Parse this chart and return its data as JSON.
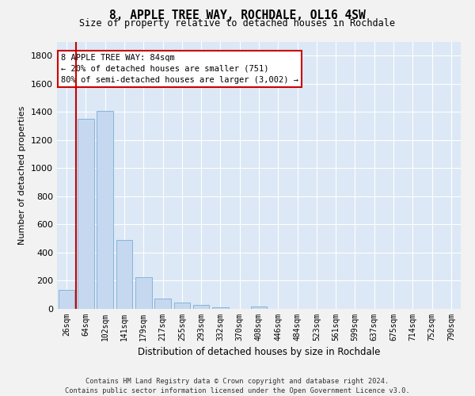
{
  "title": "8, APPLE TREE WAY, ROCHDALE, OL16 4SW",
  "subtitle": "Size of property relative to detached houses in Rochdale",
  "xlabel": "Distribution of detached houses by size in Rochdale",
  "ylabel": "Number of detached properties",
  "bar_color": "#c5d8f0",
  "bar_edgecolor": "#7aadd4",
  "categories": [
    "26sqm",
    "64sqm",
    "102sqm",
    "141sqm",
    "179sqm",
    "217sqm",
    "255sqm",
    "293sqm",
    "332sqm",
    "370sqm",
    "408sqm",
    "446sqm",
    "484sqm",
    "523sqm",
    "561sqm",
    "599sqm",
    "637sqm",
    "675sqm",
    "714sqm",
    "752sqm",
    "790sqm"
  ],
  "values": [
    135,
    1350,
    1410,
    490,
    225,
    75,
    43,
    27,
    13,
    0,
    17,
    0,
    0,
    0,
    0,
    0,
    0,
    0,
    0,
    0,
    0
  ],
  "ylim": [
    0,
    1900
  ],
  "yticks": [
    0,
    200,
    400,
    600,
    800,
    1000,
    1200,
    1400,
    1600,
    1800
  ],
  "vline_x": 0.5,
  "vline_color": "#cc0000",
  "annotation_title": "8 APPLE TREE WAY: 84sqm",
  "annotation_line1": "← 20% of detached houses are smaller (751)",
  "annotation_line2": "80% of semi-detached houses are larger (3,002) →",
  "annotation_box_color": "#ffffff",
  "annotation_box_edgecolor": "#cc0000",
  "background_color": "#dce8f5",
  "grid_color": "#ffffff",
  "fig_background": "#f2f2f2",
  "footer_line1": "Contains HM Land Registry data © Crown copyright and database right 2024.",
  "footer_line2": "Contains public sector information licensed under the Open Government Licence v3.0."
}
